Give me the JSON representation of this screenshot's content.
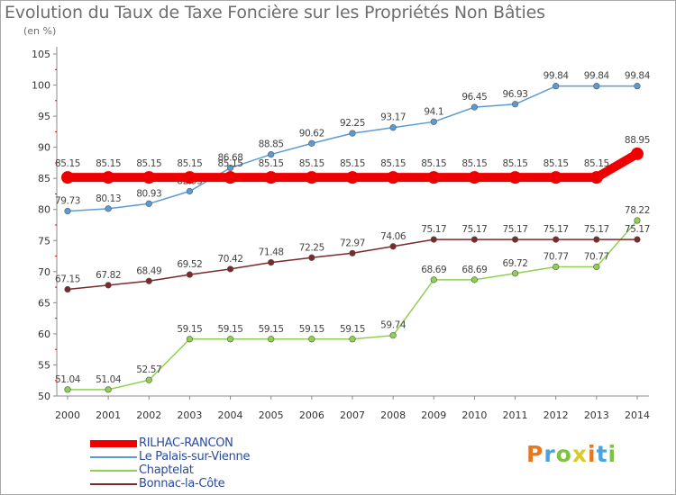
{
  "colors": {
    "rilhac": "#ee0000",
    "palais": "#5b9bd5",
    "chaptelat": "#8fd14f",
    "bonnac": "#7a2a2a",
    "axis": "#888888",
    "tick_text": "#333333",
    "legend_text": "#2a4a9b"
  },
  "logo": {
    "text": "Proxiti",
    "letter_colors": [
      "#e87722",
      "#4aa3df",
      "#7cc243",
      "#d9cc2a",
      "#e87722",
      "#4aa3df",
      "#7cc243"
    ]
  },
  "chart_data": {
    "type": "line",
    "title": "Evolution du Taux de Taxe Foncière sur les Propriétés Non Bâties",
    "subtitle": "(en %)",
    "xlabel": "",
    "ylabel": "",
    "ylim": [
      50,
      105
    ],
    "yticks": [
      50,
      55,
      60,
      65,
      70,
      75,
      80,
      85,
      90,
      95,
      100,
      105
    ],
    "categories": [
      "2000",
      "2001",
      "2002",
      "2003",
      "2004",
      "2005",
      "2006",
      "2007",
      "2008",
      "2009",
      "2010",
      "2011",
      "2012",
      "2013",
      "2014"
    ],
    "grid": false,
    "legend_position": "bottom-left",
    "series": [
      {
        "name": "Le Palais-sur-Vienne",
        "color_key": "palais",
        "values": [
          79.73,
          80.13,
          80.93,
          82.93,
          86.68,
          88.85,
          90.62,
          92.25,
          93.17,
          94.1,
          96.45,
          96.93,
          99.84,
          99.84,
          99.84
        ],
        "labels": [
          "79.73",
          "80.13",
          "80.93",
          "82.93",
          "86.68",
          "88.85",
          "90.62",
          "92.25",
          "93.17",
          "94.1",
          "96.45",
          "96.93",
          "99.84",
          "99.84",
          "99.84"
        ]
      },
      {
        "name": "Chaptelat",
        "color_key": "chaptelat",
        "values": [
          51.04,
          51.04,
          52.57,
          59.15,
          59.15,
          59.15,
          59.15,
          59.15,
          59.74,
          68.69,
          68.69,
          69.72,
          70.77,
          70.77,
          78.22
        ],
        "labels": [
          "51.04",
          "51.04",
          "52.57",
          "59.15",
          "59.15",
          "59.15",
          "59.15",
          "59.15",
          "59.74",
          "68.69",
          "68.69",
          "69.72",
          "70.77",
          "70.77",
          "78.22"
        ]
      },
      {
        "name": "Bonnac-la-Côte",
        "color_key": "bonnac",
        "values": [
          67.15,
          67.82,
          68.49,
          69.52,
          70.42,
          71.48,
          72.25,
          72.97,
          74.06,
          75.17,
          75.17,
          75.17,
          75.17,
          75.17,
          75.17
        ],
        "labels": [
          "67.15",
          "67.82",
          "68.49",
          "69.52",
          "70.42",
          "71.48",
          "72.25",
          "72.97",
          "74.06",
          "75.17",
          "75.17",
          "75.17",
          "75.17",
          "75.17",
          "75.17"
        ]
      },
      {
        "name": "RILHAC-RANCON",
        "color_key": "rilhac",
        "values": [
          85.15,
          85.15,
          85.15,
          85.15,
          85.15,
          85.15,
          85.15,
          85.15,
          85.15,
          85.15,
          85.15,
          85.15,
          85.15,
          85.15,
          88.95
        ],
        "labels": [
          "85.15",
          "85.15",
          "85.15",
          "85.15",
          "85.15",
          "85.15",
          "85.15",
          "85.15",
          "85.15",
          "85.15",
          "85.15",
          "85.15",
          "85.15",
          "85.15",
          "88.95"
        ]
      }
    ],
    "legend": [
      {
        "name": "RILHAC-RANCON",
        "color_key": "rilhac"
      },
      {
        "name": "Le Palais-sur-Vienne",
        "color_key": "palais"
      },
      {
        "name": "Chaptelat",
        "color_key": "chaptelat"
      },
      {
        "name": "Bonnac-la-Côte",
        "color_key": "bonnac"
      }
    ]
  }
}
